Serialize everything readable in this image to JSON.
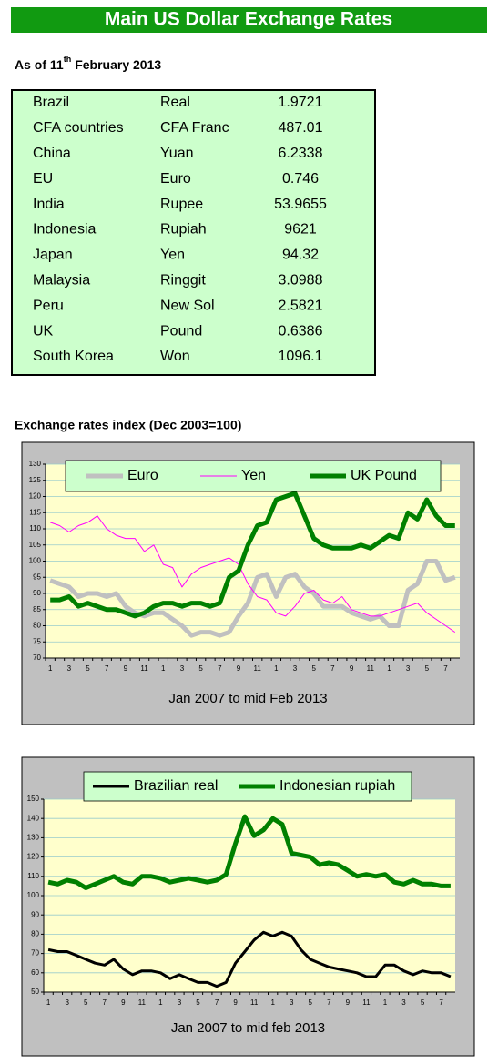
{
  "header": {
    "title": "Main US Dollar Exchange Rates",
    "date": {
      "prefix": "As of 11",
      "sup": "th",
      "suffix": "February 2013"
    }
  },
  "table": {
    "rows": [
      [
        "Brazil",
        "Real",
        1.9721
      ],
      [
        "CFA countries",
        "CFA Franc",
        487.01
      ],
      [
        "China",
        "Yuan",
        6.2338
      ],
      [
        "EU",
        "Euro",
        0.746
      ],
      [
        "India",
        "Rupee",
        53.9655
      ],
      [
        "Indonesia",
        "Rupiah",
        9621
      ],
      [
        "Japan",
        "Yen",
        94.32
      ],
      [
        "Malaysia",
        "Ringgit",
        3.0988
      ],
      [
        "Peru",
        "New Sol",
        2.5821
      ],
      [
        "UK",
        "Pound",
        0.6386
      ],
      [
        "South Korea",
        "Won",
        1096.1
      ]
    ]
  },
  "section_title": "Exchange rates index (Dec 2003=100)",
  "chart_data": [
    {
      "type": "line",
      "xlabel": "Jan 2007 to mid Feb 2013",
      "grid": true,
      "categories": [
        "1",
        null,
        "3",
        null,
        "5",
        null,
        "7",
        null,
        "9",
        null,
        "11",
        null,
        "1",
        null,
        "3",
        null,
        "5",
        null,
        "7",
        null,
        "9",
        null,
        "11",
        null,
        "1",
        null,
        "3",
        null,
        "5",
        null,
        "7",
        null,
        "9",
        null,
        "11",
        null,
        "1",
        null,
        "3",
        null,
        "5",
        null,
        "7",
        null
      ],
      "ylim": [
        70,
        130
      ],
      "yticks": [
        70,
        75,
        80,
        85,
        90,
        95,
        100,
        105,
        110,
        115,
        120,
        125,
        130
      ],
      "series": [
        {
          "name": "Euro",
          "color": "#c0c0c0",
          "values": [
            94,
            93,
            92,
            89,
            90,
            90,
            89,
            90,
            86,
            84,
            83,
            84,
            84,
            82,
            80,
            77,
            78,
            78,
            77,
            78,
            83,
            87,
            95,
            96,
            89,
            95,
            96,
            92,
            90,
            86,
            86,
            86,
            84,
            83,
            82,
            83,
            80,
            80,
            91,
            93,
            100,
            100,
            94,
            95
          ]
        },
        {
          "name": "Yen",
          "color": "#ff00ff",
          "values": [
            112,
            111,
            109,
            111,
            112,
            114,
            110,
            108,
            107,
            107,
            103,
            105,
            99,
            98,
            92,
            96,
            98,
            99,
            100,
            101,
            99,
            93,
            89,
            88,
            84,
            83,
            86,
            90,
            91,
            88,
            87,
            89,
            85,
            84,
            83,
            83,
            84,
            85,
            86,
            87,
            84,
            82,
            80,
            78
          ]
        },
        {
          "name": "UK Pound",
          "color": "#008000",
          "values": [
            88,
            88,
            89,
            86,
            87,
            86,
            85,
            85,
            84,
            83,
            84,
            86,
            87,
            87,
            86,
            87,
            87,
            86,
            87,
            95,
            97,
            105,
            111,
            112,
            119,
            120,
            121,
            114,
            107,
            105,
            104,
            104,
            104,
            105,
            104,
            106,
            108,
            107,
            115,
            113,
            119,
            114,
            111,
            111
          ]
        }
      ]
    },
    {
      "type": "line",
      "xlabel": "Jan 2007 to mid feb 2013",
      "grid": true,
      "categories": [
        "1",
        null,
        "3",
        null,
        "5",
        null,
        "7",
        null,
        "9",
        null,
        "11",
        null,
        "1",
        null,
        "3",
        null,
        "5",
        null,
        "7",
        null,
        "9",
        null,
        "11",
        null,
        "1",
        null,
        "3",
        null,
        "5",
        null,
        "7",
        null,
        "9",
        null,
        "11",
        null,
        "1",
        null,
        "3",
        null,
        "5",
        null,
        "7",
        null
      ],
      "ylim": [
        50,
        150
      ],
      "yticks": [
        50,
        60,
        70,
        80,
        90,
        100,
        110,
        120,
        130,
        140,
        150
      ],
      "series": [
        {
          "name": "Brazilian real",
          "color": "#000000",
          "values": [
            72,
            71,
            71,
            69,
            67,
            65,
            64,
            67,
            62,
            59,
            61,
            61,
            60,
            57,
            59,
            57,
            55,
            55,
            53,
            55,
            65,
            71,
            77,
            81,
            79,
            81,
            79,
            72,
            67,
            65,
            63,
            62,
            61,
            60,
            58,
            58,
            64,
            64,
            61,
            59,
            61,
            60,
            60,
            58
          ]
        },
        {
          "name": "Indonesian rupiah",
          "color": "#008000",
          "values": [
            107,
            106,
            108,
            107,
            104,
            106,
            108,
            110,
            107,
            106,
            110,
            110,
            109,
            107,
            108,
            109,
            108,
            107,
            108,
            111,
            127,
            141,
            131,
            134,
            140,
            137,
            122,
            121,
            120,
            116,
            117,
            116,
            113,
            110,
            111,
            110,
            111,
            107,
            106,
            108,
            106,
            106,
            105,
            105
          ]
        }
      ]
    }
  ]
}
